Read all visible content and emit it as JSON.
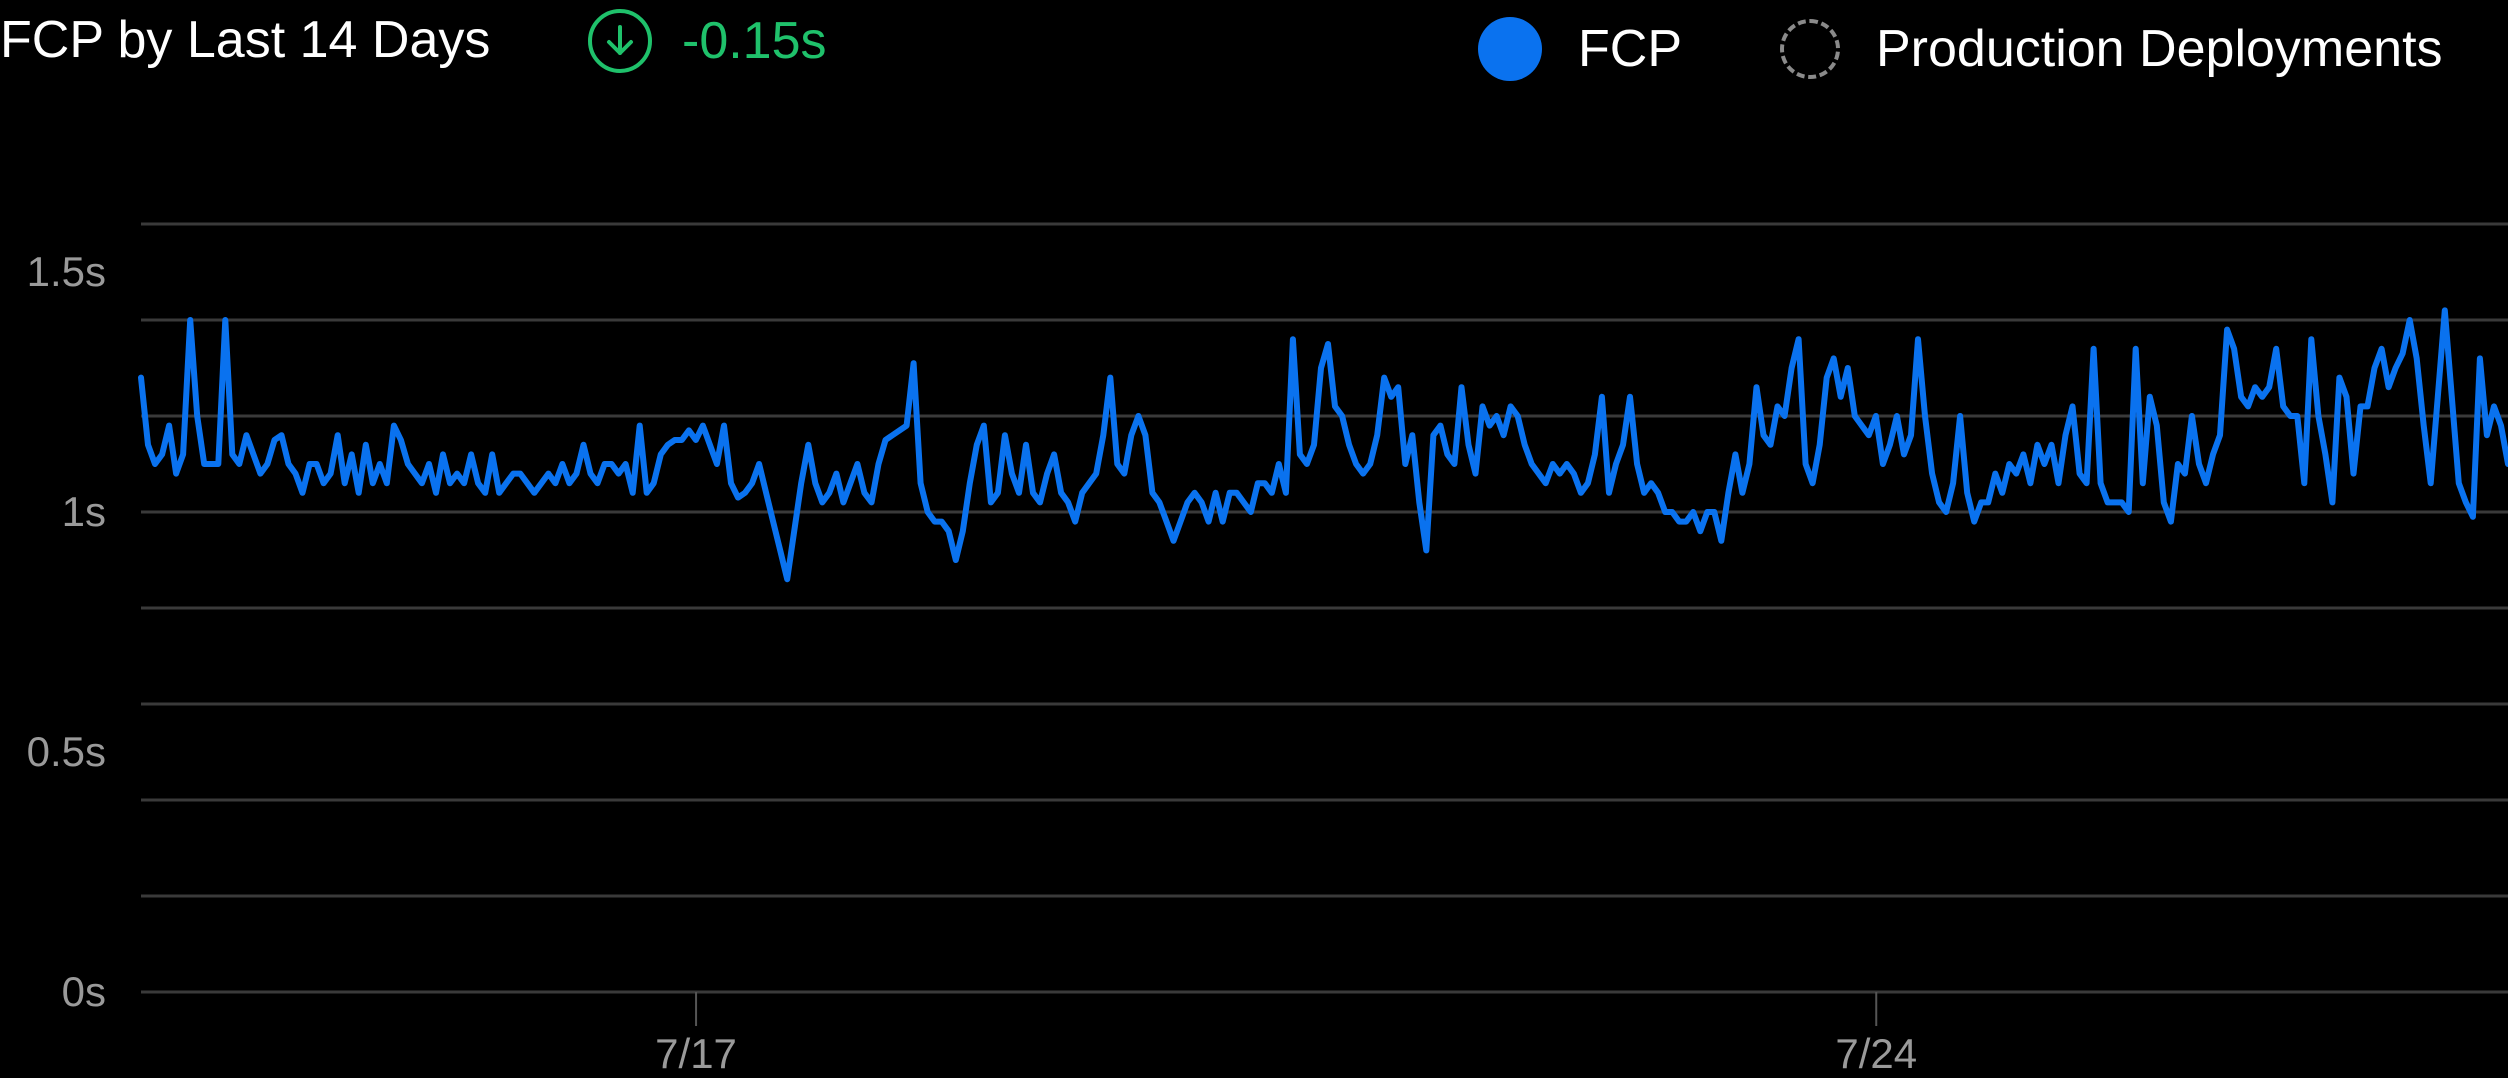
{
  "header": {
    "title": "FCP by Last 14 Days",
    "delta_icon": "arrow-down-circle-icon",
    "delta_value": "-0.15s",
    "delta_color": "#1fc16b"
  },
  "legend": {
    "items": [
      {
        "label": "FCP",
        "marker": "filled-circle",
        "color": "#0a72ef"
      },
      {
        "label": "Production Deployments",
        "marker": "dashed-circle",
        "color": "#8a8a8a"
      }
    ]
  },
  "chart_data": {
    "type": "line",
    "title": "FCP by Last 14 Days",
    "xlabel": "",
    "ylabel": "",
    "ylim": [
      0,
      1.6
    ],
    "y_ticks": [
      {
        "label": "0s",
        "value": 0
      },
      {
        "label": "0.5s",
        "value": 0.5
      },
      {
        "label": "1s",
        "value": 1.0
      },
      {
        "label": "1.5s",
        "value": 1.5
      }
    ],
    "gridlines": [
      0,
      0.2,
      0.4,
      0.6,
      0.8,
      1.0,
      1.2,
      1.4,
      1.6
    ],
    "x_ticks": [
      {
        "label": "7/17",
        "position": 0.2345
      },
      {
        "label": "7/24",
        "position": 0.7331
      }
    ],
    "grid": true,
    "legend_position": "top-right",
    "series": [
      {
        "name": "FCP",
        "color": "#0a72ef",
        "values": [
          1.28,
          1.14,
          1.1,
          1.12,
          1.18,
          1.08,
          1.12,
          1.4,
          1.2,
          1.1,
          1.1,
          1.1,
          1.4,
          1.12,
          1.1,
          1.16,
          1.12,
          1.08,
          1.1,
          1.15,
          1.16,
          1.1,
          1.08,
          1.04,
          1.1,
          1.1,
          1.06,
          1.08,
          1.16,
          1.06,
          1.12,
          1.04,
          1.14,
          1.06,
          1.1,
          1.06,
          1.18,
          1.15,
          1.1,
          1.08,
          1.06,
          1.1,
          1.04,
          1.12,
          1.06,
          1.08,
          1.06,
          1.12,
          1.06,
          1.04,
          1.12,
          1.04,
          1.06,
          1.08,
          1.08,
          1.06,
          1.04,
          1.06,
          1.08,
          1.06,
          1.1,
          1.06,
          1.08,
          1.14,
          1.08,
          1.06,
          1.1,
          1.1,
          1.08,
          1.1,
          1.04,
          1.18,
          1.04,
          1.06,
          1.12,
          1.14,
          1.15,
          1.15,
          1.17,
          1.15,
          1.18,
          1.14,
          1.1,
          1.18,
          1.06,
          1.03,
          1.04,
          1.06,
          1.1,
          1.04,
          0.98,
          0.92,
          0.86,
          0.96,
          1.06,
          1.14,
          1.06,
          1.02,
          1.04,
          1.08,
          1.02,
          1.06,
          1.1,
          1.04,
          1.02,
          1.1,
          1.15,
          1.16,
          1.17,
          1.18,
          1.31,
          1.06,
          1.0,
          0.98,
          0.98,
          0.96,
          0.9,
          0.96,
          1.06,
          1.14,
          1.18,
          1.02,
          1.04,
          1.16,
          1.08,
          1.04,
          1.14,
          1.04,
          1.02,
          1.08,
          1.12,
          1.04,
          1.02,
          0.98,
          1.04,
          1.06,
          1.08,
          1.16,
          1.28,
          1.1,
          1.08,
          1.16,
          1.2,
          1.16,
          1.04,
          1.02,
          0.98,
          0.94,
          0.98,
          1.02,
          1.04,
          1.02,
          0.98,
          1.04,
          0.98,
          1.04,
          1.04,
          1.02,
          1.0,
          1.06,
          1.06,
          1.04,
          1.1,
          1.04,
          1.36,
          1.12,
          1.1,
          1.14,
          1.3,
          1.35,
          1.22,
          1.2,
          1.14,
          1.1,
          1.08,
          1.1,
          1.16,
          1.28,
          1.24,
          1.26,
          1.1,
          1.16,
          1.02,
          0.92,
          1.16,
          1.18,
          1.12,
          1.1,
          1.26,
          1.14,
          1.08,
          1.22,
          1.18,
          1.2,
          1.16,
          1.22,
          1.2,
          1.14,
          1.1,
          1.08,
          1.06,
          1.1,
          1.08,
          1.1,
          1.08,
          1.04,
          1.06,
          1.12,
          1.24,
          1.04,
          1.1,
          1.14,
          1.24,
          1.1,
          1.04,
          1.06,
          1.04,
          1.0,
          1.0,
          0.98,
          0.98,
          1.0,
          0.96,
          1.0,
          1.0,
          0.94,
          1.04,
          1.12,
          1.04,
          1.1,
          1.26,
          1.16,
          1.14,
          1.22,
          1.2,
          1.3,
          1.36,
          1.1,
          1.06,
          1.14,
          1.28,
          1.32,
          1.24,
          1.3,
          1.2,
          1.18,
          1.16,
          1.2,
          1.1,
          1.14,
          1.2,
          1.12,
          1.16,
          1.36,
          1.2,
          1.08,
          1.02,
          1.0,
          1.06,
          1.2,
          1.04,
          0.98,
          1.02,
          1.02,
          1.08,
          1.04,
          1.1,
          1.08,
          1.12,
          1.06,
          1.14,
          1.1,
          1.14,
          1.06,
          1.16,
          1.22,
          1.08,
          1.06,
          1.34,
          1.06,
          1.02,
          1.02,
          1.02,
          1.0,
          1.34,
          1.06,
          1.24,
          1.18,
          1.02,
          0.98,
          1.1,
          1.08,
          1.2,
          1.1,
          1.06,
          1.12,
          1.16,
          1.38,
          1.34,
          1.24,
          1.22,
          1.26,
          1.24,
          1.26,
          1.34,
          1.22,
          1.2,
          1.2,
          1.06,
          1.36,
          1.2,
          1.12,
          1.02,
          1.28,
          1.24,
          1.08,
          1.22,
          1.22,
          1.3,
          1.34,
          1.26,
          1.3,
          1.33,
          1.4,
          1.32,
          1.18,
          1.06,
          1.24,
          1.42,
          1.24,
          1.06,
          1.02,
          0.99,
          1.32,
          1.16,
          1.22,
          1.18,
          1.1
        ]
      }
    ]
  }
}
